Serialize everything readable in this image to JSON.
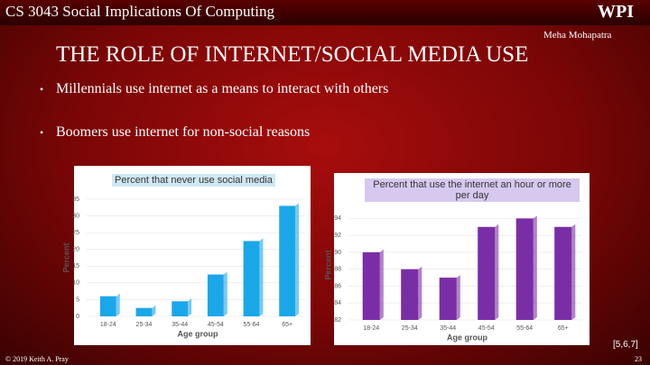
{
  "header": {
    "course": "CS 3043 Social Implications Of Computing",
    "logo": "WPI",
    "author": "Meha Mohapatra"
  },
  "title": "THE ROLE OF INTERNET/SOCIAL MEDIA USE",
  "bullets": [
    "Millennials use internet as a means to interact with others",
    "Boomers use internet for non-social reasons"
  ],
  "chart_data": [
    {
      "type": "bar",
      "title": "Percent that never use social media",
      "x_label": "Age group",
      "y_label": "Percent",
      "categories": [
        "18-24",
        "25-34",
        "35-44",
        "45-54",
        "55-64",
        "65+"
      ],
      "values": [
        6,
        2.5,
        4.5,
        12.5,
        22.5,
        33
      ],
      "color": "#1aa7ea",
      "ylim": [
        0,
        35
      ],
      "yticks": [
        0,
        5,
        10,
        15,
        20,
        25,
        30,
        35
      ],
      "grid": true
    },
    {
      "type": "bar",
      "title": "Percent that use the internet an hour or more per day",
      "x_label": "Age group",
      "y_label": "Percent",
      "categories": [
        "18-24",
        "25-34",
        "35-44",
        "45-54",
        "55-64",
        "65+"
      ],
      "values": [
        90,
        88,
        87,
        93,
        94,
        93
      ],
      "color": "#7a2ea6",
      "ylim": [
        82,
        95
      ],
      "yticks": [
        82,
        84,
        86,
        88,
        90,
        92,
        94
      ],
      "grid": true
    }
  ],
  "footer": {
    "copyright": "© 2019 Keith A. Pray",
    "page": "23",
    "refs": "[5,6,7]"
  }
}
